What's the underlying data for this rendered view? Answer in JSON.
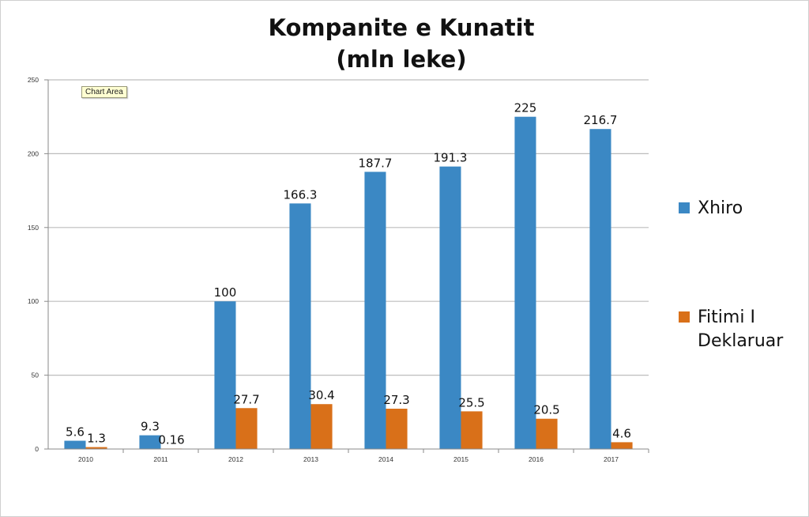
{
  "tooltip": {
    "text": "Chart Area"
  },
  "chart_data": {
    "type": "bar",
    "title": "Kompanite e Kunatit",
    "subtitle": "(mln leke)",
    "categories": [
      "2010",
      "2011",
      "2012",
      "2013",
      "2014",
      "2015",
      "2016",
      "2017"
    ],
    "series": [
      {
        "name": "Xhiro",
        "values": [
          5.6,
          9.3,
          100,
          166.3,
          187.7,
          191.3,
          225,
          216.7
        ],
        "labels": [
          "5.6",
          "9.3",
          "100",
          "166.3",
          "187.7",
          "191.3",
          "225",
          "216.7"
        ],
        "color": "#3b88c4"
      },
      {
        "name": "Fitimi I Deklaruar",
        "values": [
          1.3,
          0.16,
          27.7,
          30.4,
          27.3,
          25.5,
          20.5,
          4.6
        ],
        "labels": [
          "1.3",
          "0.16",
          "27.7",
          "30.4",
          "27.3",
          "25.5",
          "20.5",
          "4.6"
        ],
        "color": "#d97019"
      }
    ],
    "ylim": [
      0,
      250
    ],
    "yticks": [
      "0",
      "50",
      "100",
      "150",
      "200",
      "250"
    ],
    "grid": true,
    "legend_position": "right"
  }
}
